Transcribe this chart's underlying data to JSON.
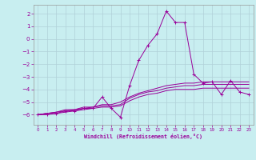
{
  "xlabel": "Windchill (Refroidissement éolien,°C)",
  "background_color": "#c8eef0",
  "grid_color": "#b0d0d8",
  "line_color": "#990099",
  "spine_color": "#999999",
  "xlim": [
    -0.5,
    23.5
  ],
  "ylim": [
    -6.8,
    2.7
  ],
  "yticks": [
    -6,
    -5,
    -4,
    -3,
    -2,
    -1,
    0,
    1,
    2
  ],
  "xticks": [
    0,
    1,
    2,
    3,
    4,
    5,
    6,
    7,
    8,
    9,
    10,
    11,
    12,
    13,
    14,
    15,
    16,
    17,
    18,
    19,
    20,
    21,
    22,
    23
  ],
  "x": [
    0,
    1,
    2,
    3,
    4,
    5,
    6,
    7,
    8,
    9,
    10,
    11,
    12,
    13,
    14,
    15,
    16,
    17,
    18,
    19,
    20,
    21,
    22,
    23
  ],
  "series_main": [
    -6.0,
    -6.0,
    -5.9,
    -5.7,
    -5.7,
    -5.5,
    -5.5,
    -4.6,
    -5.5,
    -6.2,
    -3.7,
    -1.7,
    -0.5,
    0.4,
    2.2,
    1.3,
    1.3,
    -2.8,
    -3.5,
    -3.4,
    -4.4,
    -3.3,
    -4.2,
    -4.4
  ],
  "series2": [
    -6.0,
    -5.9,
    -5.8,
    -5.7,
    -5.6,
    -5.5,
    -5.4,
    -5.2,
    -5.2,
    -5.0,
    -4.6,
    -4.3,
    -4.1,
    -3.9,
    -3.7,
    -3.6,
    -3.5,
    -3.5,
    -3.4,
    -3.4,
    -3.4,
    -3.4,
    -3.4,
    -3.4
  ],
  "series3": [
    -6.0,
    -5.9,
    -5.9,
    -5.8,
    -5.7,
    -5.6,
    -5.5,
    -5.4,
    -5.4,
    -5.3,
    -4.9,
    -4.6,
    -4.4,
    -4.3,
    -4.1,
    -4.0,
    -4.0,
    -4.0,
    -3.9,
    -3.9,
    -3.9,
    -3.9,
    -3.9,
    -3.9
  ],
  "series4": [
    -6.0,
    -5.9,
    -5.8,
    -5.6,
    -5.6,
    -5.4,
    -5.4,
    -5.3,
    -5.3,
    -5.2,
    -4.7,
    -4.4,
    -4.2,
    -4.1,
    -3.9,
    -3.8,
    -3.7,
    -3.7,
    -3.6,
    -3.6,
    -3.6,
    -3.6,
    -3.6,
    -3.6
  ]
}
